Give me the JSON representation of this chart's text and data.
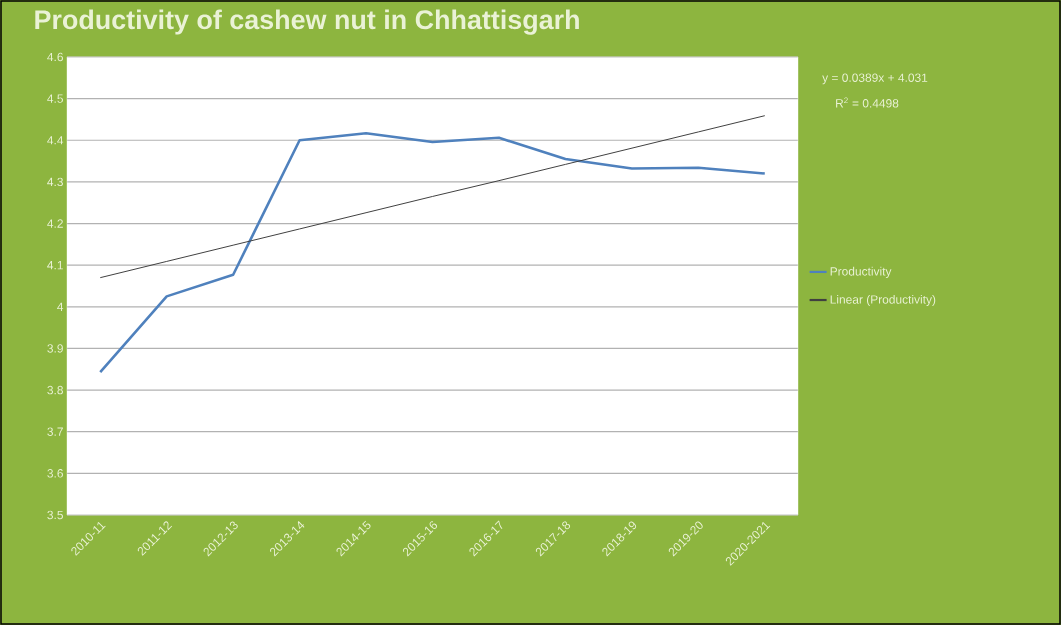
{
  "chart_data": {
    "type": "line",
    "title": "Productivity of cashew nut in Chhattisgarh",
    "categories": [
      "2010-11",
      "2011-12",
      "2012-13",
      "2013-14",
      "2014-15",
      "2015-16",
      "2016-17",
      "2017-18",
      "2018-19",
      "2019-20",
      "2020-2021"
    ],
    "series": [
      {
        "name": "Productivity",
        "color": "#4f81bd",
        "values": [
          3.843,
          4.025,
          4.077,
          4.4,
          4.417,
          4.396,
          4.406,
          4.355,
          4.332,
          4.334,
          4.32
        ]
      },
      {
        "name": "Linear (Productivity)",
        "color": "#404040",
        "type": "line",
        "values": [
          4.07,
          4.109,
          4.148,
          4.187,
          4.226,
          4.265,
          4.303,
          4.342,
          4.381,
          4.42,
          4.459
        ]
      }
    ],
    "ylim": [
      3.5,
      4.6
    ],
    "yticks": [
      3.5,
      3.6,
      3.7,
      3.8,
      3.9,
      4,
      4.1,
      4.2,
      4.3,
      4.4,
      4.5,
      4.6
    ],
    "grid": "y",
    "legend": "right",
    "marker": "none",
    "line_style": "solid",
    "annotations": [
      "y = 0.0389x + 4.031",
      "R$^{2}$ = 0.4498"
    ]
  }
}
